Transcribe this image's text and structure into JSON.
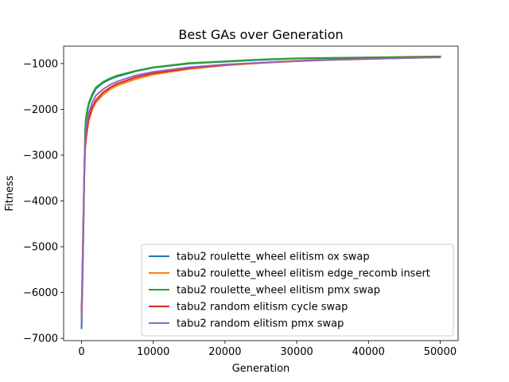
{
  "chart_data": {
    "type": "line",
    "title": "Best GAs over Generation",
    "xlabel": "Generation",
    "ylabel": "Fitness",
    "xlim": [
      -2500,
      52500
    ],
    "ylim": [
      -7050,
      -620
    ],
    "xticks": [
      0,
      10000,
      20000,
      30000,
      40000,
      50000
    ],
    "xtick_labels": [
      "0",
      "10000",
      "20000",
      "30000",
      "40000",
      "50000"
    ],
    "yticks": [
      -7000,
      -6000,
      -5000,
      -4000,
      -3000,
      -2000,
      -1000
    ],
    "ytick_labels": [
      "−7000",
      "−6000",
      "−5000",
      "−4000",
      "−3000",
      "−2000",
      "−1000"
    ],
    "grid": false,
    "legend_position": "lower right",
    "x": [
      0,
      100,
      200,
      300,
      400,
      500,
      600,
      800,
      1000,
      1500,
      2000,
      3000,
      4000,
      5000,
      7500,
      10000,
      15000,
      20000,
      25000,
      30000,
      35000,
      40000,
      45000,
      50000
    ],
    "series": [
      {
        "name": "tabu2 roulette_wheel elitism ox swap",
        "color": "#1f77b4",
        "values": [
          -6780,
          -6000,
          -5200,
          -4300,
          -3300,
          -2500,
          -2250,
          -2050,
          -1900,
          -1700,
          -1550,
          -1420,
          -1340,
          -1280,
          -1170,
          -1090,
          -1000,
          -960,
          -920,
          -890,
          -880,
          -870,
          -860,
          -850
        ]
      },
      {
        "name": "tabu2 roulette_wheel elitism edge_recomb insert",
        "color": "#ff7f0e",
        "values": [
          -6450,
          -5700,
          -4900,
          -4100,
          -3400,
          -2900,
          -2700,
          -2450,
          -2250,
          -2000,
          -1850,
          -1680,
          -1560,
          -1480,
          -1340,
          -1240,
          -1120,
          -1040,
          -990,
          -950,
          -920,
          -900,
          -880,
          -860
        ]
      },
      {
        "name": "tabu2 roulette_wheel elitism pmx swap",
        "color": "#2ca02c",
        "values": [
          -6550,
          -5900,
          -5100,
          -4200,
          -3250,
          -2450,
          -2200,
          -2000,
          -1860,
          -1660,
          -1520,
          -1400,
          -1320,
          -1260,
          -1160,
          -1080,
          -990,
          -950,
          -910,
          -885,
          -875,
          -865,
          -855,
          -845
        ]
      },
      {
        "name": "tabu2 random elitism cycle swap",
        "color": "#d62728",
        "values": [
          -6380,
          -5650,
          -4800,
          -3950,
          -3250,
          -2850,
          -2650,
          -2400,
          -2200,
          -1950,
          -1800,
          -1630,
          -1520,
          -1440,
          -1300,
          -1210,
          -1100,
          -1030,
          -980,
          -940,
          -915,
          -895,
          -875,
          -860
        ]
      },
      {
        "name": "tabu2 random elitism pmx swap",
        "color": "#9467bd",
        "values": [
          -6600,
          -5800,
          -4950,
          -4000,
          -3150,
          -2700,
          -2500,
          -2250,
          -2080,
          -1850,
          -1700,
          -1560,
          -1460,
          -1390,
          -1260,
          -1180,
          -1080,
          -1020,
          -980,
          -945,
          -920,
          -900,
          -880,
          -865
        ]
      }
    ]
  }
}
